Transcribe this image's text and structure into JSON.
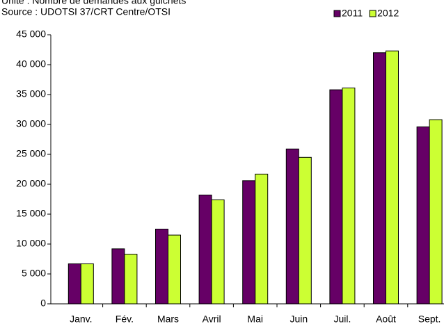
{
  "chart_data": {
    "type": "bar",
    "title": "Unité : Nombre de demandes aux guichets",
    "subtitle": "Source : UDOTSI 37/CRT Centre/OTSI",
    "categories": [
      "Janv.",
      "Fév.",
      "Mars",
      "Avril",
      "Mai",
      "Juin",
      "Juil.",
      "Août",
      "Sept."
    ],
    "series": [
      {
        "name": "2011",
        "color": "#660066",
        "values": [
          6700,
          9200,
          12500,
          18200,
          20600,
          25900,
          35800,
          42000,
          29600
        ]
      },
      {
        "name": "2012",
        "color": "#ccff33",
        "values": [
          6700,
          8300,
          11500,
          17400,
          21700,
          24500,
          36100,
          42300,
          30800
        ]
      }
    ],
    "ylim": [
      0,
      45000
    ],
    "yticks": [
      0,
      {
        "value": 5000,
        "label": "5 000"
      },
      {
        "value": 10000,
        "label": "10 000"
      },
      {
        "value": 15000,
        "label": "15 000"
      },
      {
        "value": 20000,
        "label": "20 000"
      },
      {
        "value": 25000,
        "label": "25 000"
      },
      {
        "value": 30000,
        "label": "30 000"
      },
      {
        "value": 35000,
        "label": "35 000"
      },
      {
        "value": 40000,
        "label": "40 000"
      },
      {
        "value": 45000,
        "label": "45 000"
      }
    ],
    "grid": false,
    "legend": "top-right"
  }
}
